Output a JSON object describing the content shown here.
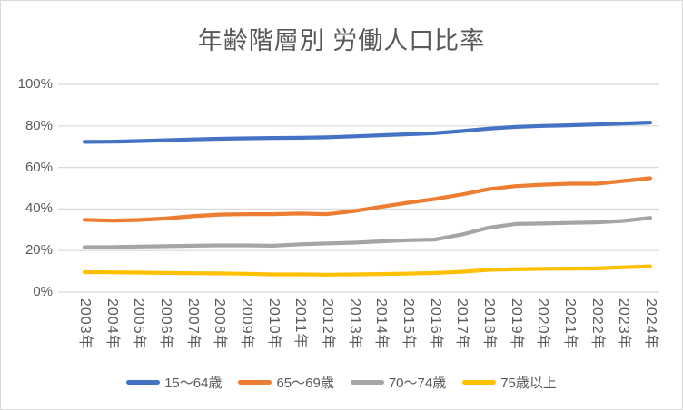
{
  "chart_data": {
    "type": "line",
    "title": "年齢階層別 労働人口比率",
    "categories": [
      "2003年",
      "2004年",
      "2005年",
      "2006年",
      "2007年",
      "2008年",
      "2009年",
      "2010年",
      "2011年",
      "2012年",
      "2013年",
      "2014年",
      "2015年",
      "2016年",
      "2017年",
      "2018年",
      "2019年",
      "2020年",
      "2021年",
      "2022年",
      "2023年",
      "2024年"
    ],
    "series": [
      {
        "name": "15〜64歳",
        "color": "#4472C4",
        "values": [
          72.3,
          72.4,
          72.7,
          73.1,
          73.5,
          73.8,
          74.0,
          74.2,
          74.3,
          74.5,
          75.0,
          75.5,
          76.0,
          76.5,
          77.5,
          78.7,
          79.5,
          80.0,
          80.3,
          80.7,
          81.2,
          81.6
        ]
      },
      {
        "name": "65〜69歳",
        "color": "#ED7D31",
        "values": [
          34.8,
          34.4,
          34.7,
          35.4,
          36.5,
          37.3,
          37.5,
          37.5,
          37.8,
          37.5,
          39.0,
          41.0,
          43.0,
          44.8,
          47.0,
          49.5,
          51.0,
          51.7,
          52.2,
          52.2,
          53.5,
          54.8
        ]
      },
      {
        "name": "70〜74歳",
        "color": "#A5A5A5",
        "values": [
          21.6,
          21.6,
          21.9,
          22.1,
          22.3,
          22.5,
          22.5,
          22.3,
          23.0,
          23.4,
          23.8,
          24.4,
          25.0,
          25.3,
          27.7,
          31.0,
          32.8,
          33.0,
          33.3,
          33.6,
          34.3,
          35.7
        ]
      },
      {
        "name": "75歳以上",
        "color": "#FFC000",
        "values": [
          9.6,
          9.5,
          9.4,
          9.2,
          9.1,
          9.0,
          8.8,
          8.5,
          8.5,
          8.4,
          8.5,
          8.7,
          8.9,
          9.2,
          9.8,
          10.7,
          11.0,
          11.2,
          11.3,
          11.4,
          11.9,
          12.4
        ]
      }
    ],
    "yticks": [
      "0%",
      "20%",
      "40%",
      "60%",
      "80%",
      "100%"
    ],
    "ylim": [
      0,
      100
    ],
    "xlabel": "",
    "ylabel": "",
    "grid": "horizontal",
    "legend_position": "bottom",
    "colors": {
      "text": "#595959",
      "gridline": "#D9D9D9",
      "border": "#D9D9D9",
      "background": "#FFFFFF"
    }
  }
}
